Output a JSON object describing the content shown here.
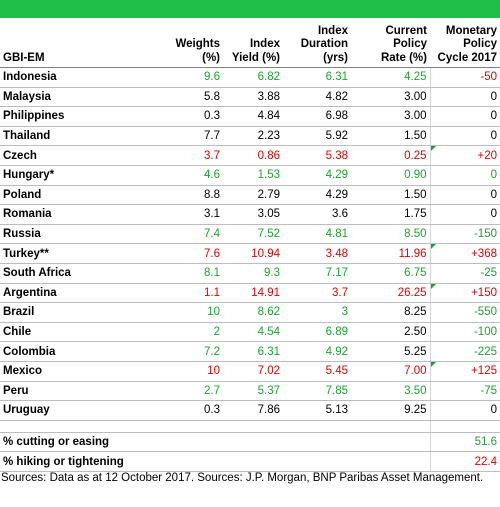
{
  "colors": {
    "header_bar": "#1fbf4a",
    "green": "#1aa32a",
    "red": "#e00000",
    "black": "#000000"
  },
  "table": {
    "headers": [
      "GBI-EM",
      "Weights (%)",
      "Index Yield (%)",
      "Index Duration (yrs)",
      "Current Policy Rate (%)",
      "Monetary Policy Cycle 2017"
    ],
    "header_lines": [
      [
        "GBI-EM"
      ],
      [
        "Weights",
        "(%)"
      ],
      [
        "Index",
        "Yield  (%)"
      ],
      [
        "Index",
        "Duration",
        "(yrs)"
      ],
      [
        "Current",
        "Policy",
        "Rate (%)"
      ],
      [
        "Monetary",
        "Policy",
        "Cycle 2017"
      ]
    ],
    "rows": [
      {
        "country": "Indonesia",
        "weight": "9.6",
        "yield": "6.82",
        "duration": "6.31",
        "rate": "4.25",
        "cycle": "-50",
        "c": [
          "green",
          "green",
          "green",
          "green",
          "red"
        ],
        "flag": []
      },
      {
        "country": "Malaysia",
        "weight": "5.8",
        "yield": "3.88",
        "duration": "4.82",
        "rate": "3.00",
        "cycle": "0",
        "c": [
          "black",
          "black",
          "black",
          "black",
          "black"
        ],
        "flag": []
      },
      {
        "country": "Philippines",
        "weight": "0.3",
        "yield": "4.84",
        "duration": "6.98",
        "rate": "3.00",
        "cycle": "0",
        "c": [
          "black",
          "black",
          "black",
          "black",
          "black"
        ],
        "flag": []
      },
      {
        "country": "Thailand",
        "weight": "7.7",
        "yield": "2.23",
        "duration": "5.92",
        "rate": "1.50",
        "cycle": "0",
        "c": [
          "black",
          "black",
          "black",
          "black",
          "black"
        ],
        "flag": []
      },
      {
        "country": "Czech",
        "weight": "3.7",
        "yield": "0.86",
        "duration": "5.38",
        "rate": "0.25",
        "cycle": "+20",
        "c": [
          "red",
          "red",
          "red",
          "red",
          "red"
        ],
        "flag": [
          4
        ]
      },
      {
        "country": "Hungary*",
        "weight": "4.6",
        "yield": "1.53",
        "duration": "4.29",
        "rate": "0.90",
        "cycle": "0",
        "c": [
          "green",
          "green",
          "green",
          "green",
          "green"
        ],
        "flag": []
      },
      {
        "country": "Poland",
        "weight": "8.8",
        "yield": "2.79",
        "duration": "4.29",
        "rate": "1.50",
        "cycle": "0",
        "c": [
          "black",
          "black",
          "black",
          "black",
          "black"
        ],
        "flag": []
      },
      {
        "country": "Romania",
        "weight": "3.1",
        "yield": "3.05",
        "duration": "3.6",
        "rate": "1.75",
        "cycle": "0",
        "c": [
          "black",
          "black",
          "black",
          "black",
          "black"
        ],
        "flag": []
      },
      {
        "country": "Russia",
        "weight": "7.4",
        "yield": "7.52",
        "duration": "4.81",
        "rate": "8.50",
        "cycle": "-150",
        "c": [
          "green",
          "green",
          "green",
          "green",
          "green"
        ],
        "flag": []
      },
      {
        "country": "Turkey**",
        "weight": "7.6",
        "yield": "10.94",
        "duration": "3.48",
        "rate": "11.96",
        "cycle": "+368",
        "c": [
          "red",
          "red",
          "red",
          "red",
          "red"
        ],
        "flag": [
          4
        ]
      },
      {
        "country": "South Africa",
        "weight": "8.1",
        "yield": "9.3",
        "duration": "7.17",
        "rate": "6.75",
        "cycle": "-25",
        "c": [
          "green",
          "green",
          "green",
          "green",
          "green"
        ],
        "flag": []
      },
      {
        "country": "Argentina",
        "weight": "1.1",
        "yield": "14.91",
        "duration": "3.7",
        "rate": "26.25",
        "cycle": "+150",
        "c": [
          "red",
          "red",
          "red",
          "red",
          "red"
        ],
        "flag": [
          4
        ]
      },
      {
        "country": "Brazil",
        "weight": "10",
        "yield": "8.62",
        "duration": "3",
        "rate": "8.25",
        "cycle": "-550",
        "c": [
          "green",
          "green",
          "green",
          "black",
          "green"
        ],
        "flag": []
      },
      {
        "country": "Chile",
        "weight": "2",
        "yield": "4.54",
        "duration": "6.89",
        "rate": "2.50",
        "cycle": "-100",
        "c": [
          "green",
          "green",
          "green",
          "black",
          "green"
        ],
        "flag": []
      },
      {
        "country": "Colombia",
        "weight": "7.2",
        "yield": "6.31",
        "duration": "4.92",
        "rate": "5.25",
        "cycle": "-225",
        "c": [
          "green",
          "green",
          "green",
          "black",
          "green"
        ],
        "flag": []
      },
      {
        "country": "Mexico",
        "weight": "10",
        "yield": "7.02",
        "duration": "5.45",
        "rate": "7.00",
        "cycle": "+125",
        "c": [
          "red",
          "red",
          "red",
          "red",
          "red"
        ],
        "flag": [
          4
        ]
      },
      {
        "country": "Peru",
        "weight": "2.7",
        "yield": "5.37",
        "duration": "7.85",
        "rate": "3.50",
        "cycle": "-75",
        "c": [
          "green",
          "green",
          "green",
          "green",
          "green"
        ],
        "flag": []
      },
      {
        "country": "Uruguay",
        "weight": "0.3",
        "yield": "7.86",
        "duration": "5.13",
        "rate": "9.25",
        "cycle": "0",
        "c": [
          "black",
          "black",
          "black",
          "black",
          "black"
        ],
        "flag": []
      }
    ],
    "summary": [
      {
        "label": "% cutting or easing",
        "value": "51.6",
        "color": "green"
      },
      {
        "label": "% hiking or tightening",
        "value": "22.4",
        "color": "red"
      }
    ]
  },
  "footer": {
    "source": "Sources: Data as at 12 October 2017. Sources: J.P. Morgan, BNP Paribas Asset Management."
  }
}
